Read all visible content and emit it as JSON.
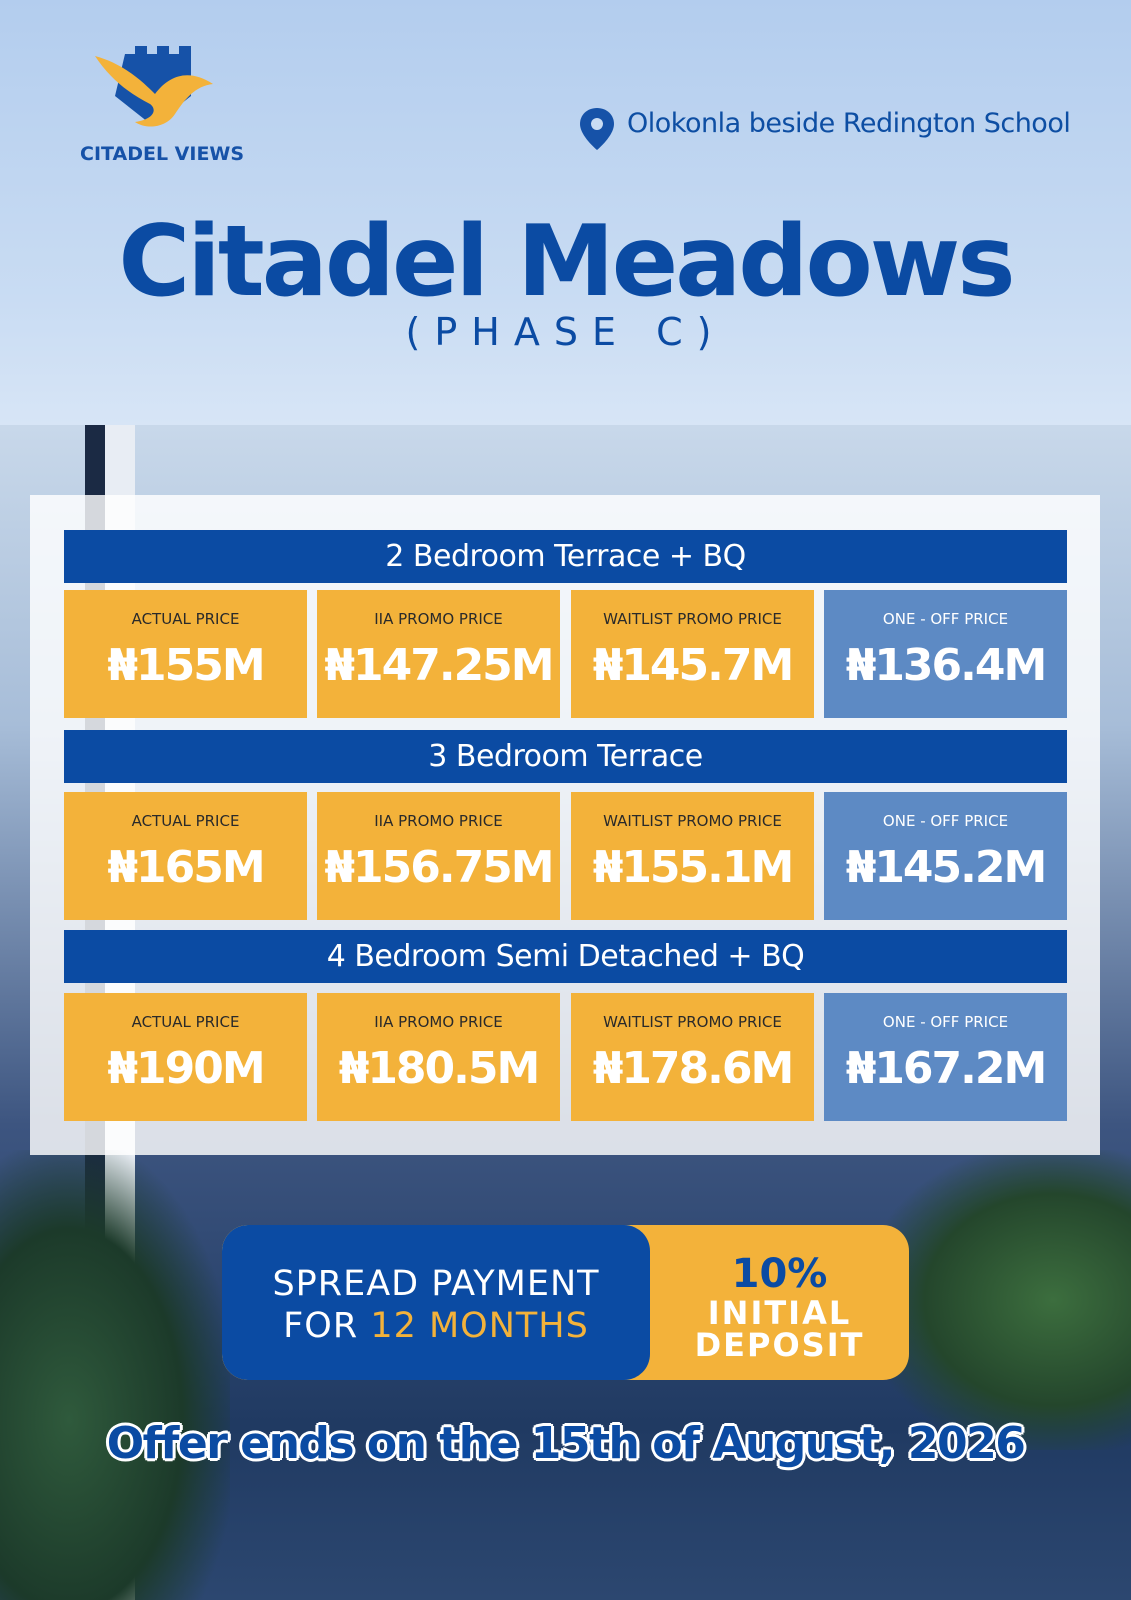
{
  "header": {
    "brand": "CITADEL VIEWS",
    "location": "Olokonla beside Redington School",
    "title": "Citadel Meadows",
    "subtitle": "(PHASE C)"
  },
  "price_table": {
    "groups": [
      {
        "name": "2 Bedroom Terrace + BQ",
        "cells": [
          {
            "label": "ACTUAL PRICE",
            "price": "₦155M"
          },
          {
            "label": "IIA PROMO PRICE",
            "price": "₦147.25M"
          },
          {
            "label": "WAITLIST PROMO PRICE",
            "price": "₦145.7M"
          },
          {
            "label": "ONE - OFF PRICE",
            "price": "₦136.4M"
          }
        ]
      },
      {
        "name": "3 Bedroom Terrace",
        "cells": [
          {
            "label": "ACTUAL PRICE",
            "price": "₦165M"
          },
          {
            "label": "IIA PROMO PRICE",
            "price": "₦156.75M"
          },
          {
            "label": "WAITLIST PROMO PRICE",
            "price": "₦155.1M"
          },
          {
            "label": "ONE - OFF PRICE",
            "price": "₦145.2M"
          }
        ]
      },
      {
        "name": "4 Bedroom Semi Detached + BQ",
        "cells": [
          {
            "label": "ACTUAL PRICE",
            "price": "₦190M"
          },
          {
            "label": "IIA PROMO PRICE",
            "price": "₦180.5M"
          },
          {
            "label": "WAITLIST PROMO PRICE",
            "price": "₦178.6M"
          },
          {
            "label": "ONE - OFF PRICE",
            "price": "₦167.2M"
          }
        ]
      }
    ]
  },
  "payment": {
    "line1": "SPREAD PAYMENT",
    "line2_prefix": "FOR",
    "line2_highlight": "12 MONTHS",
    "deposit_percent": "10%",
    "deposit_text": "INITIAL DEPOSIT"
  },
  "footer": {
    "offer": "Offer ends on the 15th of August, 2026"
  }
}
